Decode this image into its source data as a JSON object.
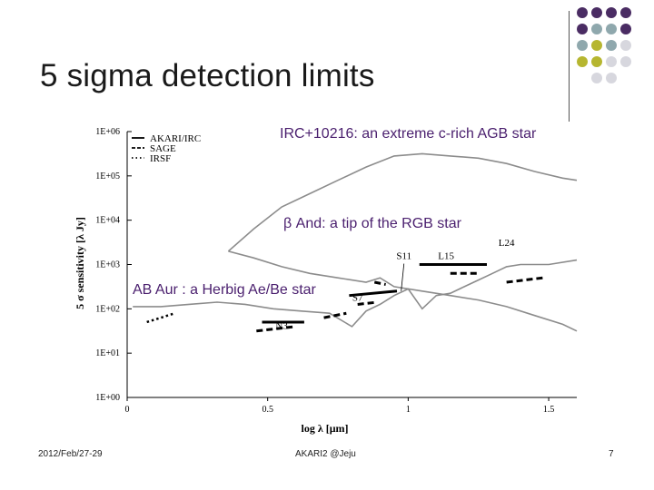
{
  "slide": {
    "title": "5 sigma detection limits",
    "footer": {
      "date": "2012/Feb/27-29",
      "center": "AKARI2 @Jeju",
      "page": "7"
    }
  },
  "colors": {
    "title_text": "#1a1a1a",
    "annotation_text": "#4a1f6e",
    "dot_purple": "#4a2c63",
    "dot_teal": "#8fa8ad",
    "dot_olive": "#b6b630",
    "dot_light": "#d7d7de",
    "curve_gray": "#8c8c8c"
  },
  "annotations": {
    "irc": "IRC+10216: an extreme c-rich AGB star",
    "band": "β And: a tip of  the RGB star",
    "abaur": "AB Aur : a Herbig Ae/Be star"
  },
  "chart_data": {
    "type": "line",
    "xlabel": "log λ [μm]",
    "ylabel": "5 σ sensitivity [λ Jy]",
    "xlim": [
      0,
      1.6
    ],
    "ylim": [
      "1E+00",
      "1E+06"
    ],
    "x_ticks": [
      "0",
      "0.5",
      "1",
      "1.5"
    ],
    "y_ticks": [
      "1E+00",
      "1E+01",
      "1E+02",
      "1E+03",
      "1E+04",
      "1E+05",
      "1E+06"
    ],
    "legend": [
      "AKARI/IRC",
      "SAGE",
      "IRSF"
    ],
    "legend_position": "top-left",
    "band_labels": [
      "N3",
      "S7",
      "S11",
      "L15",
      "L24"
    ],
    "series": [
      {
        "name": "AKARI/IRC",
        "points": [
          [
            0.48,
            1.7
          ],
          [
            0.63,
            1.7
          ],
          [
            0.79,
            2.3
          ],
          [
            0.96,
            2.4
          ],
          [
            1.04,
            3.0
          ],
          [
            1.28,
            3.0
          ]
        ]
      },
      {
        "name": "SAGE",
        "points": [
          [
            0.46,
            1.5
          ],
          [
            0.6,
            1.6
          ],
          [
            0.7,
            1.8
          ],
          [
            0.78,
            1.9
          ],
          [
            0.82,
            2.1
          ],
          [
            0.89,
            2.15
          ],
          [
            0.88,
            2.6
          ],
          [
            0.92,
            2.55
          ],
          [
            1.15,
            2.8
          ],
          [
            1.25,
            2.8
          ],
          [
            1.35,
            2.6
          ],
          [
            1.48,
            2.7
          ]
        ]
      },
      {
        "name": "IRSF",
        "points": [
          [
            0.07,
            1.7
          ],
          [
            0.17,
            1.9
          ],
          [
            0.3,
            2.05
          ]
        ]
      }
    ],
    "curves": [
      {
        "name": "IRC+10216",
        "points": [
          [
            0.36,
            3.3
          ],
          [
            0.45,
            3.8
          ],
          [
            0.55,
            4.3
          ],
          [
            0.65,
            4.6
          ],
          [
            0.75,
            4.9
          ],
          [
            0.85,
            5.2
          ],
          [
            0.95,
            5.45
          ],
          [
            1.05,
            5.5
          ],
          [
            1.15,
            5.45
          ],
          [
            1.25,
            5.4
          ],
          [
            1.35,
            5.28
          ],
          [
            1.45,
            5.1
          ],
          [
            1.55,
            4.95
          ],
          [
            1.6,
            4.9
          ]
        ]
      },
      {
        "name": "beta And",
        "points": [
          [
            0.36,
            3.3
          ],
          [
            0.45,
            3.15
          ],
          [
            0.55,
            2.95
          ],
          [
            0.65,
            2.8
          ],
          [
            0.75,
            2.7
          ],
          [
            0.85,
            2.6
          ],
          [
            0.9,
            2.7
          ],
          [
            0.95,
            2.5
          ],
          [
            1.05,
            2.4
          ],
          [
            1.15,
            2.3
          ],
          [
            1.25,
            2.2
          ],
          [
            1.35,
            2.05
          ],
          [
            1.45,
            1.85
          ],
          [
            1.55,
            1.65
          ],
          [
            1.6,
            1.5
          ]
        ]
      },
      {
        "name": "AB Aur",
        "points": [
          [
            0.02,
            2.05
          ],
          [
            0.12,
            2.05
          ],
          [
            0.22,
            2.1
          ],
          [
            0.32,
            2.15
          ],
          [
            0.42,
            2.1
          ],
          [
            0.52,
            2.0
          ],
          [
            0.62,
            1.95
          ],
          [
            0.72,
            1.9
          ],
          [
            0.8,
            1.6
          ],
          [
            0.85,
            1.95
          ],
          [
            0.9,
            2.1
          ],
          [
            0.95,
            2.3
          ],
          [
            1.0,
            2.45
          ],
          [
            1.05,
            2.0
          ],
          [
            1.1,
            2.3
          ],
          [
            1.15,
            2.35
          ],
          [
            1.2,
            2.5
          ],
          [
            1.25,
            2.65
          ],
          [
            1.3,
            2.8
          ],
          [
            1.35,
            2.95
          ],
          [
            1.4,
            3.0
          ],
          [
            1.5,
            3.0
          ],
          [
            1.6,
            3.1
          ]
        ]
      }
    ]
  }
}
